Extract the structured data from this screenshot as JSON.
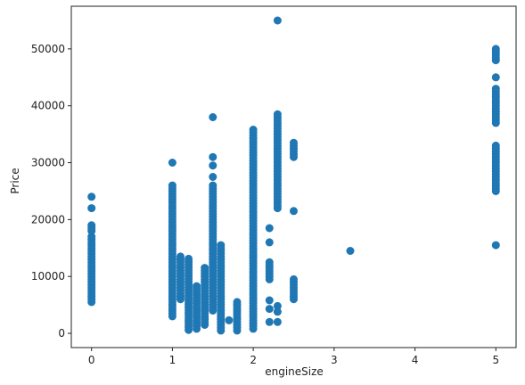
{
  "chart_data": {
    "type": "scatter",
    "title": "",
    "xlabel": "engineSize",
    "ylabel": "Price",
    "xlim": [
      -0.25,
      5.25
    ],
    "ylim": [
      -2500,
      57500
    ],
    "xticks": [
      0,
      1,
      2,
      3,
      4,
      5
    ],
    "yticks": [
      0,
      10000,
      20000,
      30000,
      40000,
      50000
    ],
    "grid": false,
    "legend": "none",
    "color": "#1f77b4",
    "columns": [
      {
        "x": 0,
        "ranges": [
          [
            5500,
            17000
          ]
        ],
        "points": [
          24000,
          22000,
          19000,
          18500,
          18000
        ]
      },
      {
        "x": 1.0,
        "ranges": [
          [
            3000,
            26000
          ]
        ],
        "points": [
          30000
        ]
      },
      {
        "x": 1.1,
        "ranges": [
          [
            6000,
            13500
          ]
        ],
        "points": []
      },
      {
        "x": 1.2,
        "ranges": [
          [
            600,
            13500
          ]
        ],
        "points": []
      },
      {
        "x": 1.3,
        "ranges": [
          [
            800,
            8500
          ]
        ],
        "points": []
      },
      {
        "x": 1.4,
        "ranges": [
          [
            1500,
            11500
          ]
        ],
        "points": []
      },
      {
        "x": 1.5,
        "ranges": [
          [
            4000,
            26000
          ]
        ],
        "points": [
          38000,
          31000,
          29500,
          27500
        ]
      },
      {
        "x": 1.6,
        "ranges": [
          [
            500,
            15500
          ]
        ],
        "points": []
      },
      {
        "x": 1.7,
        "ranges": [],
        "points": [
          2300
        ]
      },
      {
        "x": 1.8,
        "ranges": [
          [
            500,
            5500
          ]
        ],
        "points": []
      },
      {
        "x": 2.0,
        "ranges": [
          [
            800,
            36000
          ]
        ],
        "points": []
      },
      {
        "x": 2.2,
        "ranges": [
          [
            9500,
            12500
          ]
        ],
        "points": [
          18500,
          16000,
          5800,
          4300,
          2000
        ]
      },
      {
        "x": 2.3,
        "ranges": [
          [
            22000,
            38500
          ]
        ],
        "points": [
          55000,
          4800,
          3800,
          2000
        ]
      },
      {
        "x": 2.5,
        "ranges": [
          [
            31000,
            33500
          ],
          [
            6000,
            9500
          ]
        ],
        "points": [
          21500
        ]
      },
      {
        "x": 3.2,
        "ranges": [],
        "points": [
          14500
        ]
      },
      {
        "x": 5.0,
        "ranges": [
          [
            25000,
            33000
          ],
          [
            37000,
            43000
          ],
          [
            48000,
            50000
          ]
        ],
        "points": [
          45000,
          15500
        ]
      }
    ]
  }
}
